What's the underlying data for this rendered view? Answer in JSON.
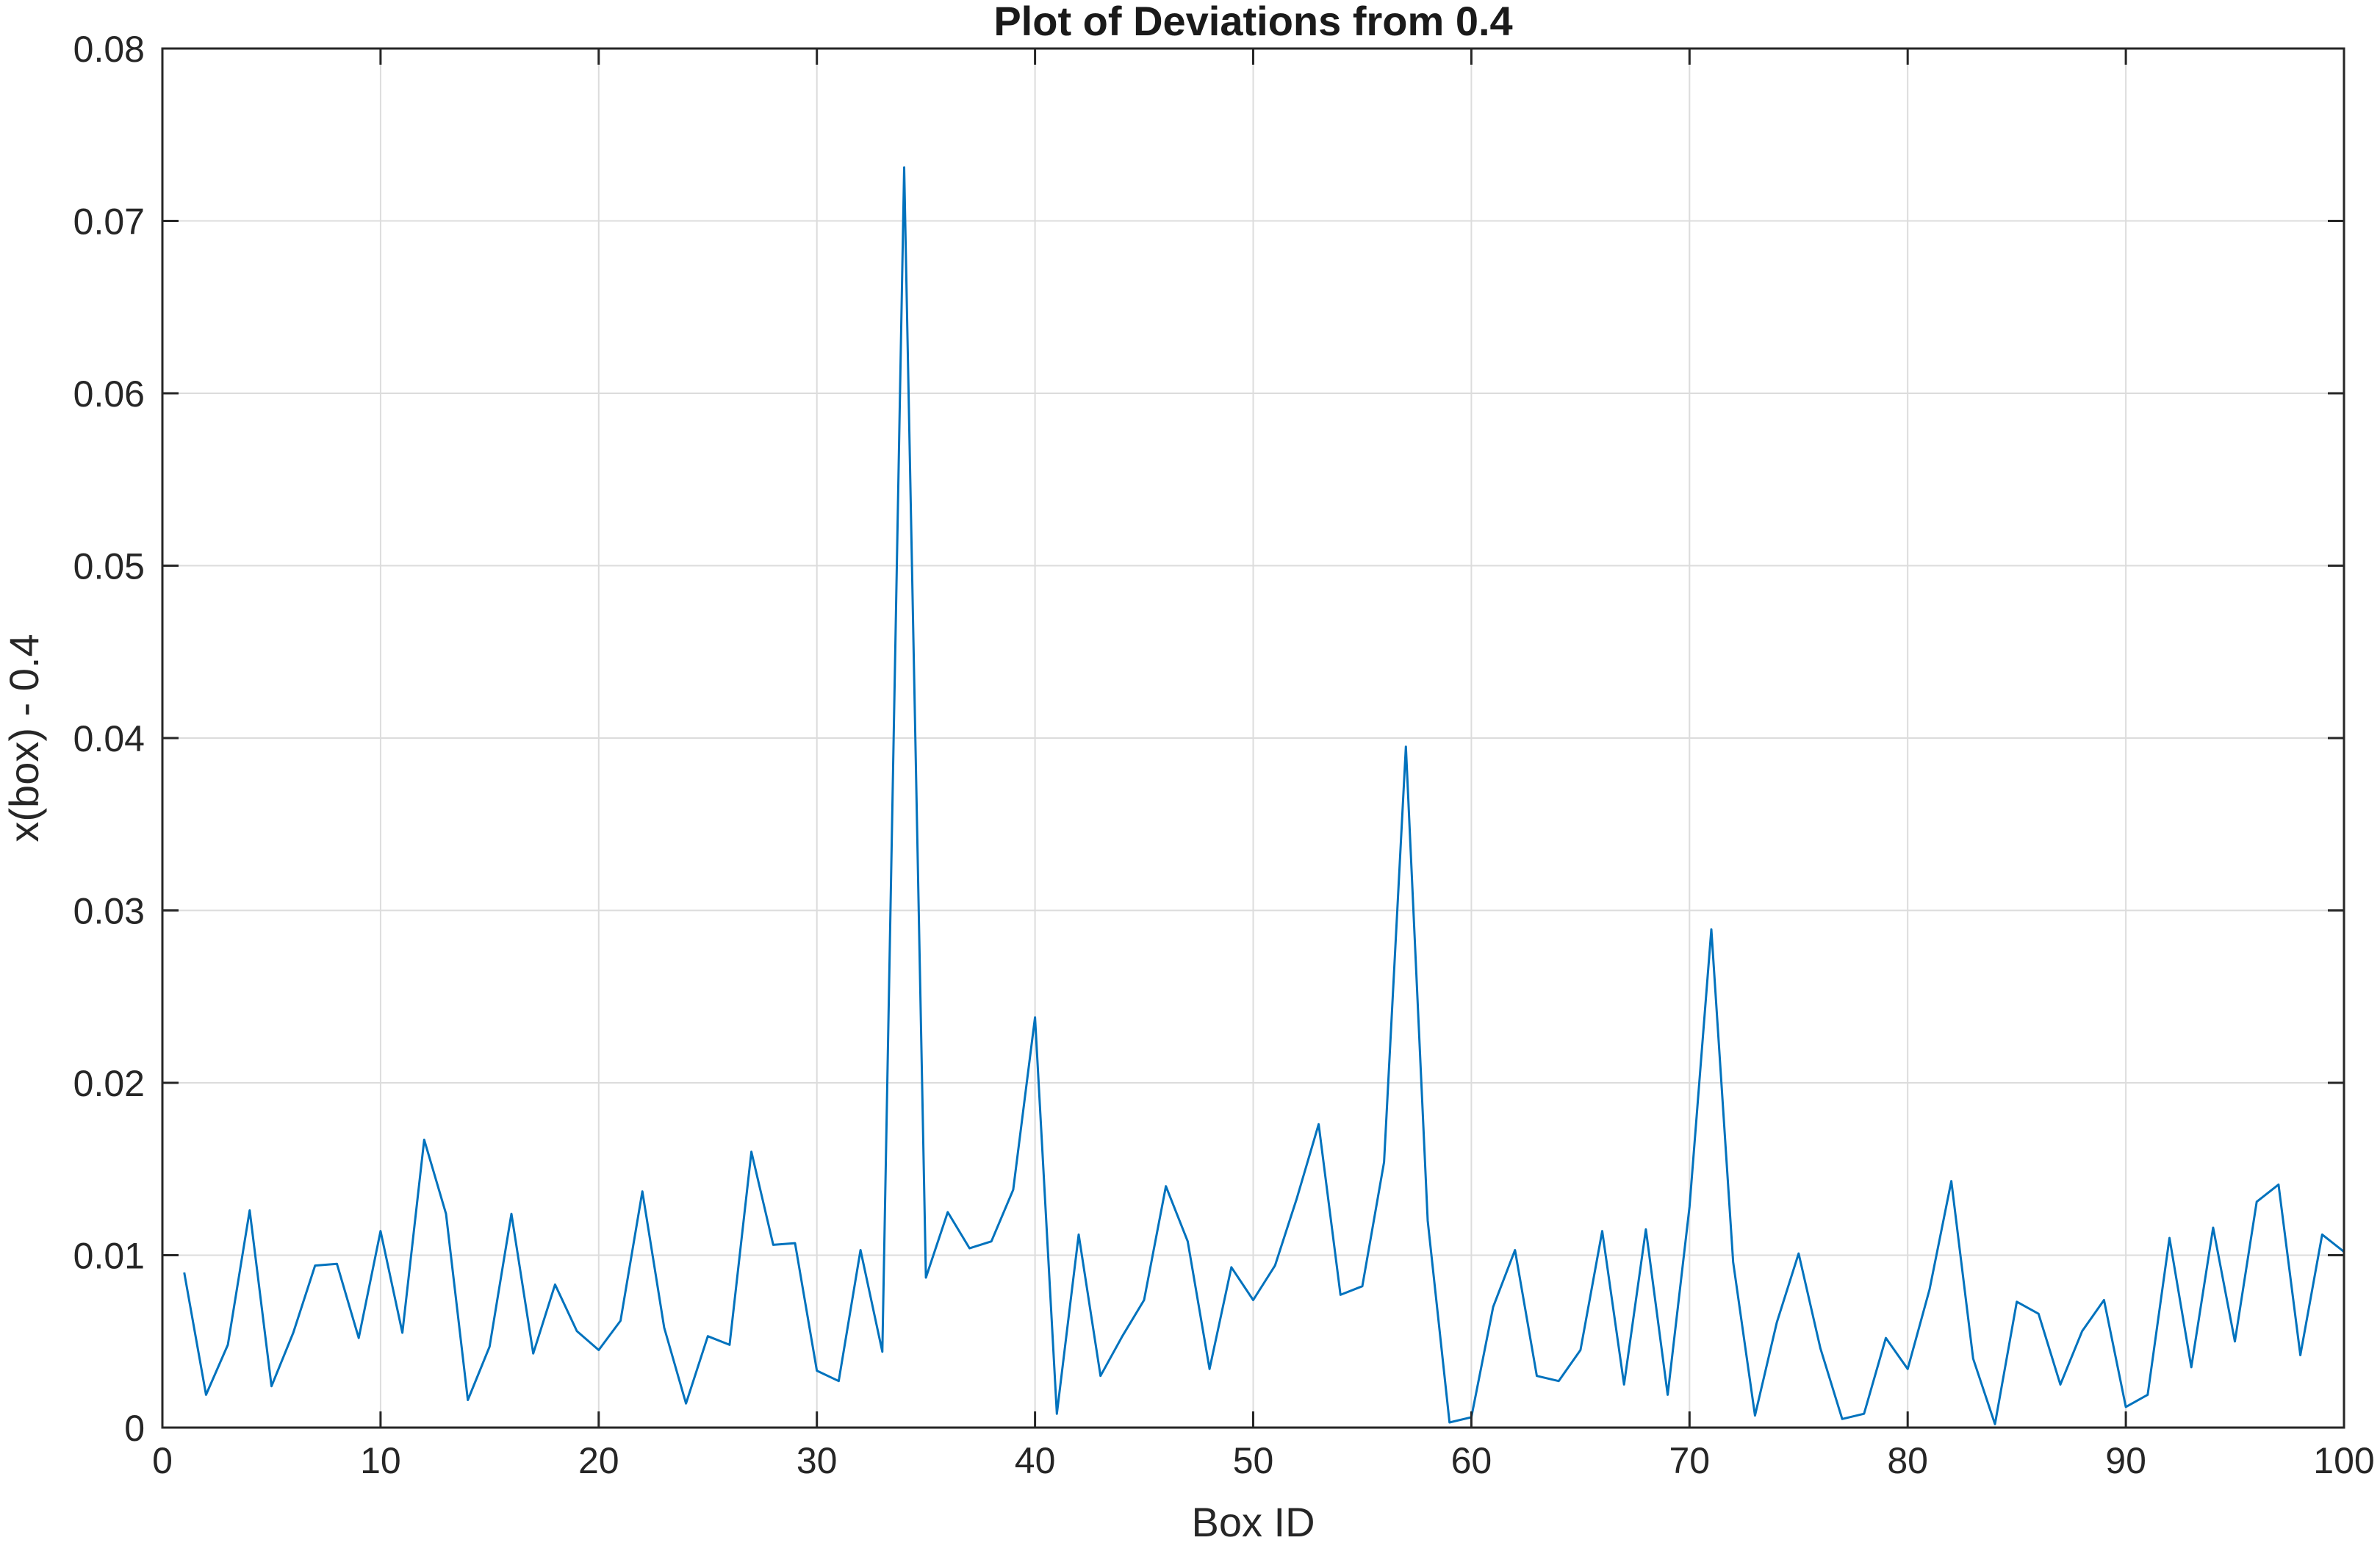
{
  "chart_data": {
    "type": "line",
    "title": "Plot of Deviations from 0.4",
    "xlabel": "Box ID",
    "ylabel": "x(box) - 0.4",
    "xlim": [
      0,
      100
    ],
    "ylim": [
      0,
      0.08
    ],
    "xticks": [
      0,
      10,
      20,
      30,
      40,
      50,
      60,
      70,
      80,
      90,
      100
    ],
    "yticks": [
      0,
      0.01,
      0.02,
      0.03,
      0.04,
      0.05,
      0.06,
      0.07,
      0.08
    ],
    "xtick_labels": [
      "0",
      "10",
      "20",
      "30",
      "40",
      "50",
      "60",
      "70",
      "80",
      "90",
      "100"
    ],
    "ytick_labels": [
      "0",
      "0.01",
      "0.02",
      "0.03",
      "0.04",
      "0.05",
      "0.06",
      "0.07",
      "0.08"
    ],
    "grid": true,
    "line_color": "#0072bd",
    "series": [
      {
        "x": [
          1,
          2,
          3,
          4,
          5,
          6,
          7,
          8,
          9,
          10,
          11,
          12,
          13,
          14,
          15,
          16,
          17,
          18,
          19,
          20,
          21,
          22,
          23,
          24,
          25,
          26,
          27,
          28,
          29,
          30,
          31,
          32,
          33,
          34,
          35,
          36,
          37,
          38,
          39,
          40,
          41,
          42,
          43,
          44,
          45,
          46,
          47,
          48,
          49,
          50,
          51,
          52,
          53,
          54,
          55,
          56,
          57,
          58,
          59,
          60,
          61,
          62,
          63,
          64,
          65,
          66,
          67,
          68,
          69,
          70,
          71,
          72,
          73,
          74,
          75,
          76,
          77,
          78,
          79,
          80,
          81,
          82,
          83,
          84,
          85,
          86,
          87,
          88,
          89,
          90,
          91,
          92,
          93,
          94,
          95,
          96,
          97,
          98,
          99,
          100
        ],
        "values": [
          0.009,
          0.0019,
          0.0048,
          0.0126,
          0.0024,
          0.0055,
          0.0094,
          0.0095,
          0.0052,
          0.0114,
          0.0055,
          0.0167,
          0.0124,
          0.0016,
          0.0047,
          0.0124,
          0.0043,
          0.0083,
          0.0056,
          0.0045,
          0.0062,
          0.0137,
          0.0058,
          0.0014,
          0.0053,
          0.0048,
          0.016,
          0.0106,
          0.0107,
          0.0033,
          0.0027,
          0.0103,
          0.0044,
          0.0731,
          0.0087,
          0.0125,
          0.0104,
          0.0108,
          0.0138,
          0.0238,
          0.0008,
          0.0112,
          0.003,
          0.0053,
          0.0074,
          0.014,
          0.0108,
          0.0034,
          0.0093,
          0.0074,
          0.0094,
          0.0133,
          0.0176,
          0.0077,
          0.0082,
          0.0154,
          0.0395,
          0.012,
          0.0003,
          0.0006,
          0.007,
          0.0103,
          0.003,
          0.0027,
          0.0045,
          0.0114,
          0.0025,
          0.0115,
          0.0019,
          0.0128,
          0.0289,
          0.0096,
          0.0007,
          0.0061,
          0.0101,
          0.0046,
          0.0005,
          0.0008,
          0.0052,
          0.0034,
          0.008,
          0.0143,
          0.004,
          0.0002,
          0.0073,
          0.0066,
          0.0025,
          0.0056,
          0.0074,
          0.0012,
          0.0019,
          0.011,
          0.0035,
          0.0116,
          0.005,
          0.0131,
          0.0141,
          0.0042,
          0.0112,
          0.0102
        ]
      }
    ]
  }
}
